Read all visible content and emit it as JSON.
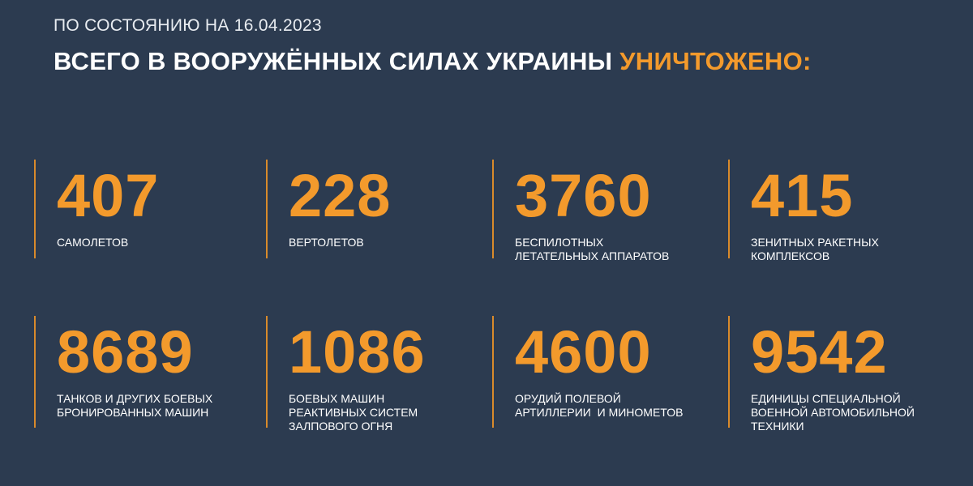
{
  "header": {
    "date_line": "ПО СОСТОЯНИЮ НА 16.04.2023",
    "title": "ВСЕГО В ВООРУЖЁННЫХ СИЛАХ УКРАИНЫ",
    "highlight": "УНИЧТОЖЕНО:"
  },
  "stats": [
    {
      "value": 407,
      "label": [
        "САМОЛЕТОВ"
      ]
    },
    {
      "value": 228,
      "label": [
        "ВЕРТОЛЕТОВ"
      ]
    },
    {
      "value": 3760,
      "label": [
        "БЕСПИЛОТНЫХ",
        "ЛЕТАТЕЛЬНЫХ АППАРАТОВ"
      ]
    },
    {
      "value": 415,
      "label": [
        "ЗЕНИТНЫХ РАКЕТНЫХ",
        "КОМПЛЕКСОВ"
      ]
    },
    {
      "value": 8689,
      "label": [
        "ТАНКОВ И ДРУГИХ БОЕВЫХ",
        "БРОНИРОВАННЫХ МАШИН"
      ]
    },
    {
      "value": 1086,
      "label": [
        "БОЕВЫХ МАШИН",
        "РЕАКТИВНЫХ СИСТЕМ",
        "ЗАЛПОВОГО ОГНЯ"
      ]
    },
    {
      "value": 4600,
      "label": [
        "ОРУДИЙ ПОЛЕВОЙ",
        "АРТИЛЛЕРИИ  И МИНОМЕТОВ"
      ]
    },
    {
      "value": 9542,
      "label": [
        "ЕДИНИЦЫ СПЕЦИАЛЬНОЙ",
        "ВОЕННОЙ АВТОМОБИЛЬНОЙ",
        "ТЕХНИКИ"
      ]
    }
  ]
}
